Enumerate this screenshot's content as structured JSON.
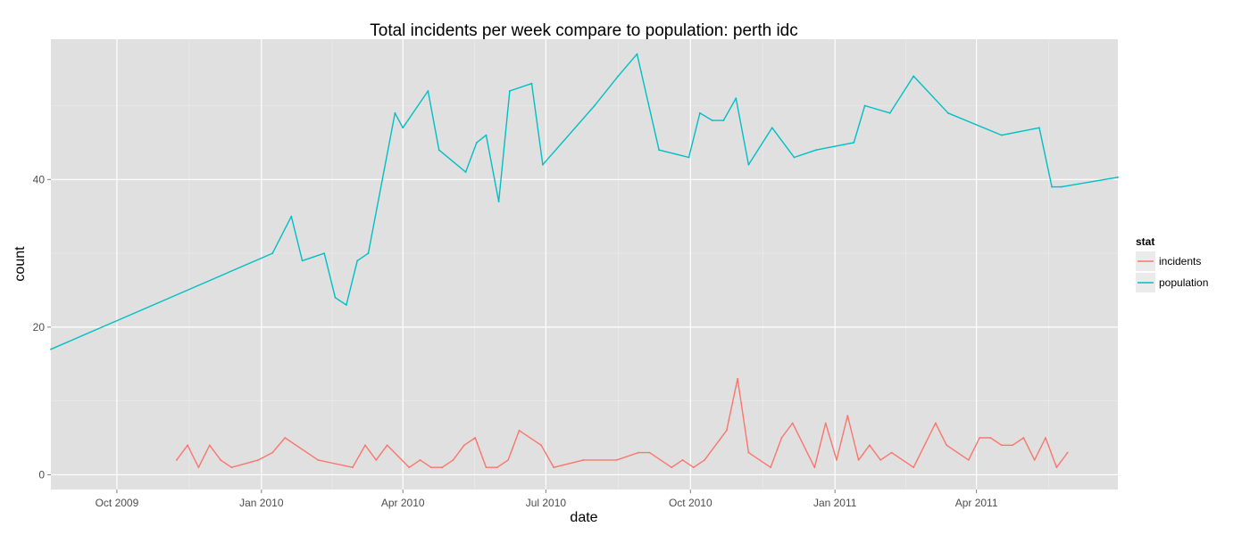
{
  "chart_data": {
    "type": "line",
    "title": "Total incidents per week compare to population: perth idc",
    "xlabel": "date",
    "ylabel": "count",
    "x_type": "date",
    "xlim": [
      "2009-08-20",
      "2011-06-30"
    ],
    "ylim": [
      -2,
      59
    ],
    "x_ticks": [
      {
        "date": "2009-10-01",
        "label": "Oct 2009"
      },
      {
        "date": "2010-01-01",
        "label": "Jan 2010"
      },
      {
        "date": "2010-04-01",
        "label": "Apr 2010"
      },
      {
        "date": "2010-07-01",
        "label": "Jul 2010"
      },
      {
        "date": "2010-10-01",
        "label": "Oct 2010"
      },
      {
        "date": "2011-01-01",
        "label": "Jan 2011"
      },
      {
        "date": "2011-04-01",
        "label": "Apr 2011"
      }
    ],
    "y_ticks": [
      0,
      20,
      40
    ],
    "grid": true,
    "background": "#e0e0e0",
    "legend": {
      "title": "stat",
      "position": "right"
    },
    "series": [
      {
        "name": "incidents",
        "color": "#f8766d",
        "points": [
          [
            "2009-11-08",
            2
          ],
          [
            "2009-11-15",
            4
          ],
          [
            "2009-11-22",
            1
          ],
          [
            "2009-11-29",
            4
          ],
          [
            "2009-12-06",
            2
          ],
          [
            "2009-12-13",
            1
          ],
          [
            "2009-12-30",
            2
          ],
          [
            "2010-01-08",
            3
          ],
          [
            "2010-01-16",
            5
          ],
          [
            "2010-02-06",
            2
          ],
          [
            "2010-02-28",
            1
          ],
          [
            "2010-03-08",
            4
          ],
          [
            "2010-03-15",
            2
          ],
          [
            "2010-03-22",
            4
          ],
          [
            "2010-04-05",
            1
          ],
          [
            "2010-04-12",
            2
          ],
          [
            "2010-04-19",
            1
          ],
          [
            "2010-04-26",
            1
          ],
          [
            "2010-05-03",
            2
          ],
          [
            "2010-05-10",
            4
          ],
          [
            "2010-05-17",
            5
          ],
          [
            "2010-05-24",
            1
          ],
          [
            "2010-05-31",
            1
          ],
          [
            "2010-06-07",
            2
          ],
          [
            "2010-06-14",
            6
          ],
          [
            "2010-06-28",
            4
          ],
          [
            "2010-07-06",
            1
          ],
          [
            "2010-07-25",
            2
          ],
          [
            "2010-08-15",
            2
          ],
          [
            "2010-08-29",
            3
          ],
          [
            "2010-09-05",
            3
          ],
          [
            "2010-09-19",
            1
          ],
          [
            "2010-09-26",
            2
          ],
          [
            "2010-10-03",
            1
          ],
          [
            "2010-10-10",
            2
          ],
          [
            "2010-10-24",
            6
          ],
          [
            "2010-10-31",
            13
          ],
          [
            "2010-11-07",
            3
          ],
          [
            "2010-11-21",
            1
          ],
          [
            "2010-11-28",
            5
          ],
          [
            "2010-12-05",
            7
          ],
          [
            "2010-12-19",
            1
          ],
          [
            "2010-12-26",
            7
          ],
          [
            "2011-01-02",
            2
          ],
          [
            "2011-01-09",
            8
          ],
          [
            "2011-01-16",
            2
          ],
          [
            "2011-01-23",
            4
          ],
          [
            "2011-01-30",
            2
          ],
          [
            "2011-02-06",
            3
          ],
          [
            "2011-02-20",
            1
          ],
          [
            "2011-03-06",
            7
          ],
          [
            "2011-03-13",
            4
          ],
          [
            "2011-03-27",
            2
          ],
          [
            "2011-04-03",
            5
          ],
          [
            "2011-04-10",
            5
          ],
          [
            "2011-04-17",
            4
          ],
          [
            "2011-04-24",
            4
          ],
          [
            "2011-05-01",
            5
          ],
          [
            "2011-05-08",
            2
          ],
          [
            "2011-05-15",
            5
          ],
          [
            "2011-05-22",
            1
          ],
          [
            "2011-05-29",
            3
          ]
        ]
      },
      {
        "name": "population",
        "color": "#00bfc4",
        "points": [
          [
            "2009-08-20",
            17
          ],
          [
            "2010-01-08",
            30
          ],
          [
            "2010-01-20",
            35
          ],
          [
            "2010-01-27",
            29
          ],
          [
            "2010-02-10",
            30
          ],
          [
            "2010-02-17",
            24
          ],
          [
            "2010-02-24",
            23
          ],
          [
            "2010-03-03",
            29
          ],
          [
            "2010-03-10",
            30
          ],
          [
            "2010-03-27",
            49
          ],
          [
            "2010-04-01",
            47
          ],
          [
            "2010-04-17",
            52
          ],
          [
            "2010-04-24",
            44
          ],
          [
            "2010-05-11",
            41
          ],
          [
            "2010-05-18",
            45
          ],
          [
            "2010-05-24",
            46
          ],
          [
            "2010-06-01",
            37
          ],
          [
            "2010-06-08",
            52
          ],
          [
            "2010-06-22",
            53
          ],
          [
            "2010-06-29",
            42
          ],
          [
            "2010-08-01",
            50
          ],
          [
            "2010-08-16",
            54
          ],
          [
            "2010-08-28",
            57
          ],
          [
            "2010-09-11",
            44
          ],
          [
            "2010-09-30",
            43
          ],
          [
            "2010-10-07",
            49
          ],
          [
            "2010-10-15",
            48
          ],
          [
            "2010-10-22",
            48
          ],
          [
            "2010-10-30",
            51
          ],
          [
            "2010-11-07",
            42
          ],
          [
            "2010-11-22",
            47
          ],
          [
            "2010-12-06",
            43
          ],
          [
            "2010-12-20",
            44
          ],
          [
            "2011-01-13",
            45
          ],
          [
            "2011-01-20",
            50
          ],
          [
            "2011-02-05",
            49
          ],
          [
            "2011-02-20",
            54
          ],
          [
            "2011-03-14",
            49
          ],
          [
            "2011-04-17",
            46
          ],
          [
            "2011-05-11",
            47
          ],
          [
            "2011-05-19",
            39
          ],
          [
            "2011-05-25",
            39
          ],
          [
            "2011-06-30",
            40.3
          ]
        ]
      }
    ]
  }
}
